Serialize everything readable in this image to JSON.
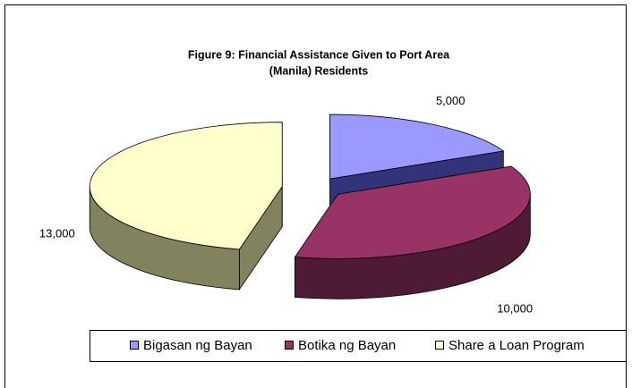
{
  "chart_data": {
    "type": "pie",
    "title": [
      "Figure 9: Financial Assistance Given to Port Area",
      "(Manila) Residents"
    ],
    "categories": [
      "Bigasan ng Bayan",
      "Botika ng Bayan",
      "Share a Loan Program"
    ],
    "values": [
      5000,
      10000,
      13000
    ],
    "value_labels": [
      "5,000",
      "10,000",
      "13,000"
    ],
    "colors": [
      "#9999ff",
      "#993366",
      "#ffffcc"
    ],
    "side_colors": [
      "#33337a",
      "#4f1a35",
      "#82825e"
    ],
    "legend": "bottom"
  }
}
